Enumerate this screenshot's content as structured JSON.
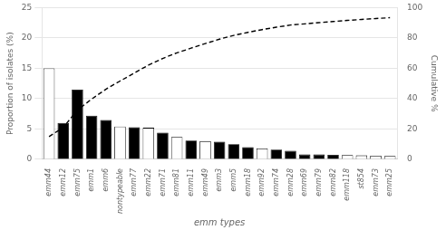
{
  "chart_data": {
    "type": "bar",
    "xlabel": "emm types",
    "ylabel": "Proportion of isolates (%)",
    "y2label": "Cumulative %",
    "categories": [
      "emm44",
      "emm12",
      "emm75",
      "emm1",
      "emm6",
      "nontypeable",
      "emm77",
      "emm22",
      "emm71",
      "emm81",
      "emm11",
      "emm49",
      "emm3",
      "emm5",
      "emm18",
      "emm92",
      "emm74",
      "emm28",
      "emm69",
      "emm79",
      "emm82",
      "emm118",
      "st854",
      "emm73",
      "emm25"
    ],
    "series": [
      {
        "type": "bar",
        "values": [
          15.0,
          6.0,
          11.5,
          7.2,
          6.5,
          5.4,
          5.3,
          5.2,
          4.4,
          3.7,
          3.1,
          3.0,
          2.9,
          2.5,
          2.0,
          1.8,
          1.6,
          1.4,
          0.8,
          0.8,
          0.75,
          0.7,
          0.65,
          0.6,
          0.55
        ],
        "colors": [
          "white",
          "black",
          "black",
          "black",
          "black",
          "white",
          "black",
          "white",
          "black",
          "white",
          "black",
          "white",
          "black",
          "black",
          "black",
          "white",
          "black",
          "black",
          "black",
          "black",
          "black",
          "white",
          "white",
          "white",
          "white"
        ]
      },
      {
        "type": "line",
        "axis": "y2",
        "color": "black",
        "line_style": "dashed",
        "values": [
          15.0,
          21.0,
          32.5,
          39.7,
          46.2,
          51.6,
          56.9,
          62.1,
          66.5,
          70.2,
          73.3,
          76.3,
          79.2,
          81.7,
          83.7,
          85.5,
          87.1,
          88.5,
          89.3,
          90.1,
          90.85,
          91.55,
          92.2,
          92.8,
          93.35
        ]
      }
    ],
    "ylim": [
      0,
      25
    ],
    "yticks": [
      0,
      5,
      10,
      15,
      20,
      25
    ],
    "y2lim": [
      0,
      100
    ],
    "y2ticks": [
      0,
      20,
      40,
      60,
      80,
      100
    ],
    "grid": true
  }
}
